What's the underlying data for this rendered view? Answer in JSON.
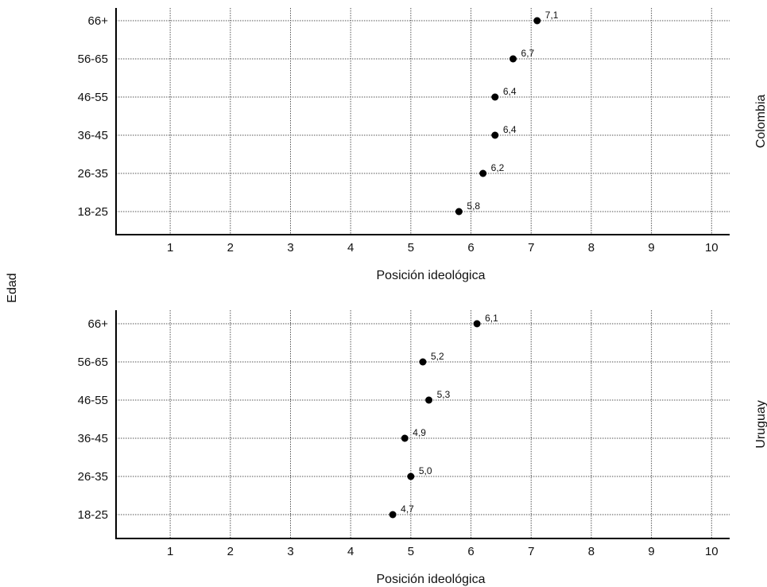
{
  "chart_data": {
    "type": "scatter",
    "shared_ylabel": "Edad",
    "categories": [
      "18-25",
      "26-35",
      "36-45",
      "46-55",
      "56-65",
      "66+"
    ],
    "xlabel": "Posición ideológica",
    "xticks": [
      1,
      2,
      3,
      4,
      5,
      6,
      7,
      8,
      9,
      10
    ],
    "xlim": [
      0.1,
      10.3
    ],
    "grid": true,
    "panels": [
      {
        "name": "Colombia",
        "values": [
          5.8,
          6.2,
          6.4,
          6.4,
          6.7,
          7.1
        ],
        "labels": [
          "5,8",
          "6,2",
          "6,4",
          "6,4",
          "6,7",
          "7,1"
        ]
      },
      {
        "name": "Uruguay",
        "values": [
          4.7,
          5.0,
          4.9,
          5.3,
          5.2,
          6.1
        ],
        "labels": [
          "4,7",
          "5,0",
          "4,9",
          "5,3",
          "5,2",
          "6,1"
        ]
      }
    ]
  }
}
